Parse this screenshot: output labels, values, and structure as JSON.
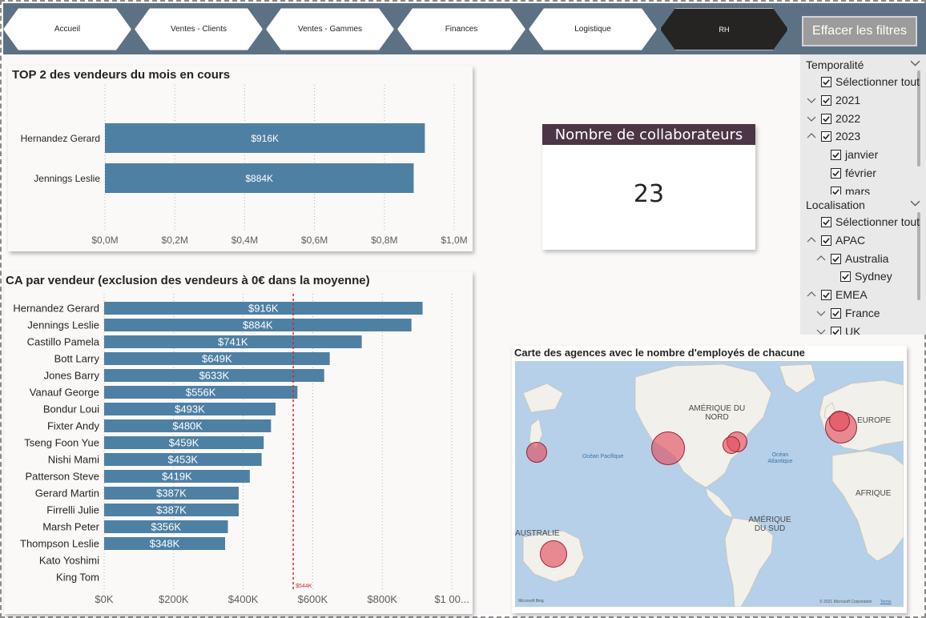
{
  "nav": {
    "buttons": [
      "Accueil",
      "Ventes - Clients",
      "Ventes - Gammes",
      "Finances",
      "Logistique",
      "RH"
    ],
    "active": "RH",
    "clear_filters": "Effacer les filtres"
  },
  "top_chart": {
    "title": "TOP 2 des vendeurs du mois en cours",
    "axis_ticks": [
      "$0,0M",
      "$0,2M",
      "$0,4M",
      "$0,6M",
      "$0,8M",
      "$1,0M"
    ]
  },
  "sales_chart": {
    "title": "CA par vendeur (exclusion des vendeurs à 0€ dans la moyenne)",
    "axis_ticks": [
      "$0K",
      "$200K",
      "$400K",
      "$600K",
      "$800K",
      "$1 00..."
    ],
    "average_label": "$544K"
  },
  "kpi": {
    "title": "Nombre de collaborateurs",
    "value": "23"
  },
  "slicer_time": {
    "title": "Temporalité",
    "items": [
      "Sélectionner tout",
      "2021",
      "2022",
      "2023",
      "janvier",
      "février",
      "mars"
    ]
  },
  "slicer_location": {
    "title": "Localisation",
    "items": [
      "Sélectionner tout",
      "APAC",
      "Australia",
      "Sydney",
      "EMEA",
      "France",
      "UK"
    ]
  },
  "map": {
    "title": "Carte des agences avec le nombre d'employés de chacune",
    "labels": {
      "north_america": "AMÉRIQUE DU NORD",
      "europe": "EUROPE",
      "africa": "AFRIQUE",
      "south_america": "AMÉRIQUE DU SUD",
      "australia": "AUSTRALIE",
      "pacific": "Océan Pacifique",
      "atlantic": "Océan Atlantique"
    },
    "bing_text": "Microsoft Bing",
    "copyright": "© 2021 Microsoft Corporation",
    "terms": "Terms"
  },
  "colors": {
    "bar": "#4e80a4",
    "kpi_header": "#4c3544",
    "nav_bg": "#5d7185",
    "average_line": "#d62728",
    "bubble": "#e24a5c"
  },
  "chart_data": [
    {
      "type": "bar",
      "orientation": "horizontal",
      "title": "TOP 2 des vendeurs du mois en cours",
      "categories": [
        "Hernandez Gerard",
        "Jennings Leslie"
      ],
      "values": [
        916,
        884
      ],
      "data_labels": [
        "$916K",
        "$884K"
      ],
      "unit": "K$",
      "xlim": [
        0,
        1000
      ],
      "grid": "vertical dotted"
    },
    {
      "type": "bar",
      "orientation": "horizontal",
      "title": "CA par vendeur (exclusion des vendeurs à 0€ dans la moyenne)",
      "categories": [
        "Hernandez Gerard",
        "Jennings Leslie",
        "Castillo Pamela",
        "Bott Larry",
        "Jones Barry",
        "Vanauf George",
        "Bondur Loui",
        "Fixter Andy",
        "Tseng Foon Yue",
        "Nishi Mami",
        "Patterson Steve",
        "Gerard Martin",
        "Firrelli Julie",
        "Marsh Peter",
        "Thompson Leslie",
        "Kato Yoshimi",
        "King Tom"
      ],
      "values": [
        916,
        884,
        741,
        649,
        633,
        556,
        493,
        480,
        459,
        453,
        419,
        387,
        387,
        356,
        348,
        0,
        0
      ],
      "data_labels": [
        "$916K",
        "$884K",
        "$741K",
        "$649K",
        "$633K",
        "$556K",
        "$493K",
        "$480K",
        "$459K",
        "$453K",
        "$419K",
        "$387K",
        "$387K",
        "$356K",
        "$348K",
        "",
        ""
      ],
      "average": 544,
      "unit": "K$",
      "xlim": [
        0,
        1000
      ],
      "grid": "vertical dotted"
    }
  ]
}
